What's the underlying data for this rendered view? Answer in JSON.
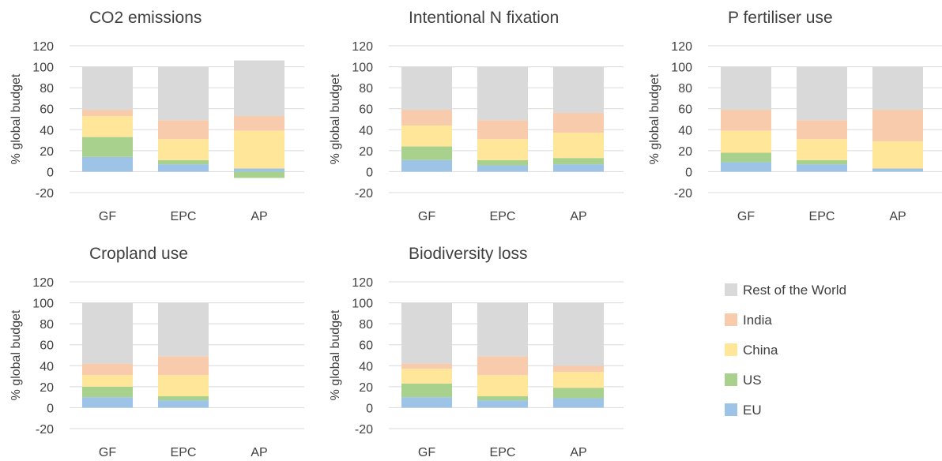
{
  "series_colors": {
    "EU": "#9dc3e6",
    "US": "#a9d18e",
    "China": "#ffe699",
    "India": "#f8cbad",
    "Rest of the World": "#d9d9d9"
  },
  "legend": [
    "Rest of the World",
    "India",
    "China",
    "US",
    "EU"
  ],
  "chart_data": [
    {
      "type": "bar",
      "stacked": true,
      "title": "CO2 emissions",
      "ylabel": "% global budget",
      "ylim": [
        -20,
        120
      ],
      "yticks": [
        "120",
        "100",
        "80",
        "60",
        "40",
        "20",
        "0",
        "-20"
      ],
      "categories": [
        "GF",
        "EPC",
        "AP"
      ],
      "series": [
        {
          "name": "EU",
          "values": [
            14,
            7,
            3
          ]
        },
        {
          "name": "US",
          "values": [
            19,
            4,
            -6
          ]
        },
        {
          "name": "China",
          "values": [
            20,
            20,
            36
          ]
        },
        {
          "name": "India",
          "values": [
            6,
            18,
            14
          ]
        },
        {
          "name": "Rest of the World",
          "values": [
            41,
            51,
            53
          ]
        }
      ]
    },
    {
      "type": "bar",
      "stacked": true,
      "title": "Intentional N fixation",
      "ylabel": "% global budget",
      "ylim": [
        -20,
        120
      ],
      "yticks": [
        "120",
        "100",
        "80",
        "60",
        "40",
        "20",
        "0",
        "-20"
      ],
      "categories": [
        "GF",
        "EPC",
        "AP"
      ],
      "series": [
        {
          "name": "EU",
          "values": [
            11,
            6,
            7
          ]
        },
        {
          "name": "US",
          "values": [
            13,
            5,
            6
          ]
        },
        {
          "name": "China",
          "values": [
            20,
            20,
            24
          ]
        },
        {
          "name": "India",
          "values": [
            15,
            18,
            19
          ]
        },
        {
          "name": "Rest of the World",
          "values": [
            41,
            51,
            44
          ]
        }
      ]
    },
    {
      "type": "bar",
      "stacked": true,
      "title": "P fertiliser use",
      "ylabel": "% global budget",
      "ylim": [
        -20,
        120
      ],
      "yticks": [
        "120",
        "100",
        "80",
        "60",
        "40",
        "20",
        "0",
        "-20"
      ],
      "categories": [
        "GF",
        "EPC",
        "AP"
      ],
      "series": [
        {
          "name": "EU",
          "values": [
            9,
            7,
            3
          ]
        },
        {
          "name": "US",
          "values": [
            9,
            4,
            0
          ]
        },
        {
          "name": "China",
          "values": [
            21,
            20,
            26
          ]
        },
        {
          "name": "India",
          "values": [
            20,
            18,
            30
          ]
        },
        {
          "name": "Rest of the World",
          "values": [
            41,
            51,
            41
          ]
        }
      ]
    },
    {
      "type": "bar",
      "stacked": true,
      "title": "Cropland use",
      "ylabel": "% global budget",
      "ylim": [
        -20,
        120
      ],
      "yticks": [
        "120",
        "100",
        "80",
        "60",
        "40",
        "20",
        "0",
        "-20"
      ],
      "categories": [
        "GF",
        "EPC",
        "AP"
      ],
      "series": [
        {
          "name": "EU",
          "values": [
            10,
            7,
            0
          ]
        },
        {
          "name": "US",
          "values": [
            10,
            4,
            0
          ]
        },
        {
          "name": "China",
          "values": [
            11,
            20,
            0
          ]
        },
        {
          "name": "India",
          "values": [
            11,
            18,
            0
          ]
        },
        {
          "name": "Rest of the World",
          "values": [
            58,
            51,
            0
          ]
        }
      ]
    },
    {
      "type": "bar",
      "stacked": true,
      "title": "Biodiversity loss",
      "ylabel": "% global budget",
      "ylim": [
        -20,
        120
      ],
      "yticks": [
        "120",
        "100",
        "80",
        "60",
        "40",
        "20",
        "0",
        "-20"
      ],
      "categories": [
        "GF",
        "EPC",
        "AP"
      ],
      "series": [
        {
          "name": "EU",
          "values": [
            10,
            7,
            9
          ]
        },
        {
          "name": "US",
          "values": [
            13,
            4,
            10
          ]
        },
        {
          "name": "China",
          "values": [
            14,
            20,
            15
          ]
        },
        {
          "name": "India",
          "values": [
            5,
            18,
            6
          ]
        },
        {
          "name": "Rest of the World",
          "values": [
            58,
            51,
            60
          ]
        }
      ]
    }
  ]
}
